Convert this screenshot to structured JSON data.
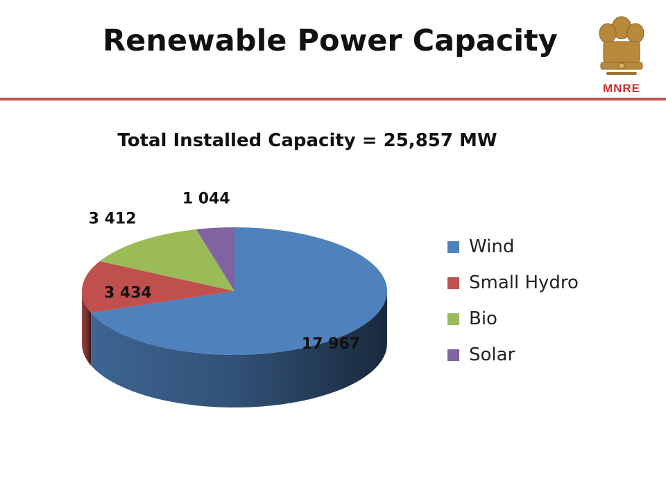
{
  "slide": {
    "title": "Renewable Power Capacity",
    "logo_text": "MNRE",
    "accent_color": "#c0504d"
  },
  "chart_data": {
    "type": "pie",
    "title": "Total Installed Capacity = 25,857 MW",
    "slices": [
      {
        "name": "Wind",
        "value": 17967,
        "label": "17 967",
        "color": "#4f81bd"
      },
      {
        "name": "Small Hydro",
        "value": 3434,
        "label": "3 434",
        "color": "#c0504d"
      },
      {
        "name": "Bio",
        "value": 3412,
        "label": "3 412",
        "color": "#9bbb59"
      },
      {
        "name": "Solar",
        "value": 1044,
        "label": "1 044",
        "color": "#8064a2"
      }
    ],
    "legend_position": "right",
    "three_d": true
  }
}
